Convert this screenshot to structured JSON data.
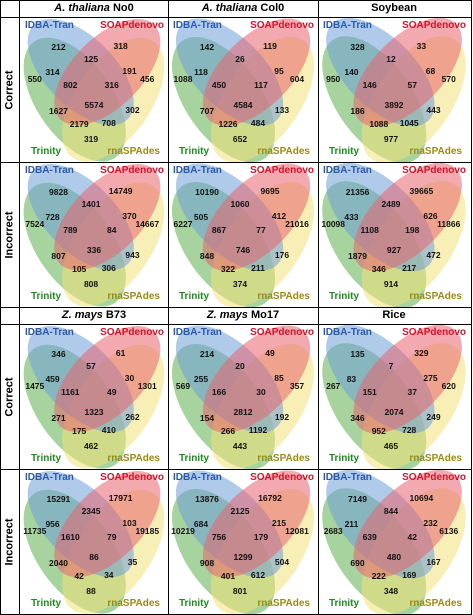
{
  "colors": {
    "idba": "#6f9fd8",
    "soap": "#e8636d",
    "trinity": "#5fae4e",
    "rnaspades": "#f2e27a",
    "label_idba": "#2d5aa8",
    "label_soap": "#d4132a",
    "label_trinity": "#1e8c1e",
    "label_rnaspades": "#9a8a14"
  },
  "set_labels": {
    "idba": "IDBA-Tran",
    "soap": "SOAPdenovo",
    "trinity": "Trinity",
    "rnaspades": "rnaSPAdes"
  },
  "row_labels": {
    "correct": "Correct",
    "incorrect": "Incorrect"
  },
  "blocks": [
    {
      "organisms": [
        {
          "italic": "A. thaliana",
          "rest": " No0"
        },
        {
          "italic": "A. thaliana",
          "rest": " Col0"
        },
        {
          "italic": "",
          "rest": "Soybean"
        }
      ],
      "rows": [
        {
          "label": "correct",
          "cells": [
            {
              "n": [
                "212",
                "318",
                "550",
                "456",
                "314",
                "125",
                "191",
                "802",
                "316",
                "1627",
                "302",
                "5574",
                "2179",
                "708",
                "319"
              ]
            },
            {
              "n": [
                "142",
                "119",
                "1088",
                "604",
                "118",
                "26",
                "95",
                "450",
                "117",
                "707",
                "133",
                "4584",
                "1226",
                "484",
                "652"
              ]
            },
            {
              "n": [
                "328",
                "33",
                "950",
                "570",
                "140",
                "12",
                "68",
                "146",
                "57",
                "186",
                "443",
                "3892",
                "1088",
                "1045",
                "977"
              ]
            }
          ]
        },
        {
          "label": "incorrect",
          "cells": [
            {
              "n": [
                "9828",
                "14749",
                "7524",
                "14667",
                "728",
                "1401",
                "370",
                "789",
                "84",
                "807",
                "943",
                "336",
                "105",
                "306",
                "808"
              ]
            },
            {
              "n": [
                "10190",
                "9695",
                "6227",
                "21016",
                "505",
                "1060",
                "412",
                "867",
                "77",
                "848",
                "176",
                "746",
                "322",
                "211",
                "374"
              ]
            },
            {
              "n": [
                "21356",
                "39665",
                "10098",
                "11866",
                "433",
                "2489",
                "626",
                "1108",
                "198",
                "1879",
                "472",
                "927",
                "346",
                "217",
                "914"
              ]
            }
          ]
        }
      ]
    },
    {
      "organisms": [
        {
          "italic": "Z. mays",
          "rest": " B73"
        },
        {
          "italic": "Z. mays",
          "rest": " Mo17"
        },
        {
          "italic": "",
          "rest": "Rice"
        }
      ],
      "rows": [
        {
          "label": "correct",
          "cells": [
            {
              "n": [
                "346",
                "61",
                "1475",
                "1301",
                "459",
                "57",
                "30",
                "1161",
                "49",
                "271",
                "262",
                "1323",
                "175",
                "410",
                "462"
              ]
            },
            {
              "n": [
                "214",
                "49",
                "569",
                "357",
                "255",
                "20",
                "85",
                "166",
                "30",
                "154",
                "192",
                "2812",
                "266",
                "1192",
                "443"
              ]
            },
            {
              "n": [
                "135",
                "329",
                "267",
                "620",
                "83",
                "7",
                "275",
                "151",
                "37",
                "346",
                "249",
                "2074",
                "952",
                "728",
                "465"
              ]
            }
          ]
        },
        {
          "label": "incorrect",
          "cells": [
            {
              "n": [
                "15291",
                "17971",
                "11735",
                "19185",
                "956",
                "2345",
                "103",
                "1610",
                "79",
                "2040",
                "35",
                "86",
                "42",
                "34",
                "88"
              ]
            },
            {
              "n": [
                "13876",
                "16792",
                "10219",
                "12081",
                "684",
                "2125",
                "215",
                "756",
                "179",
                "908",
                "504",
                "1299",
                "401",
                "612",
                "801"
              ]
            },
            {
              "n": [
                "7149",
                "10694",
                "2683",
                "6136",
                "211",
                "844",
                "232",
                "639",
                "42",
                "690",
                "167",
                "480",
                "222",
                "169",
                "348"
              ]
            }
          ]
        }
      ]
    }
  ]
}
